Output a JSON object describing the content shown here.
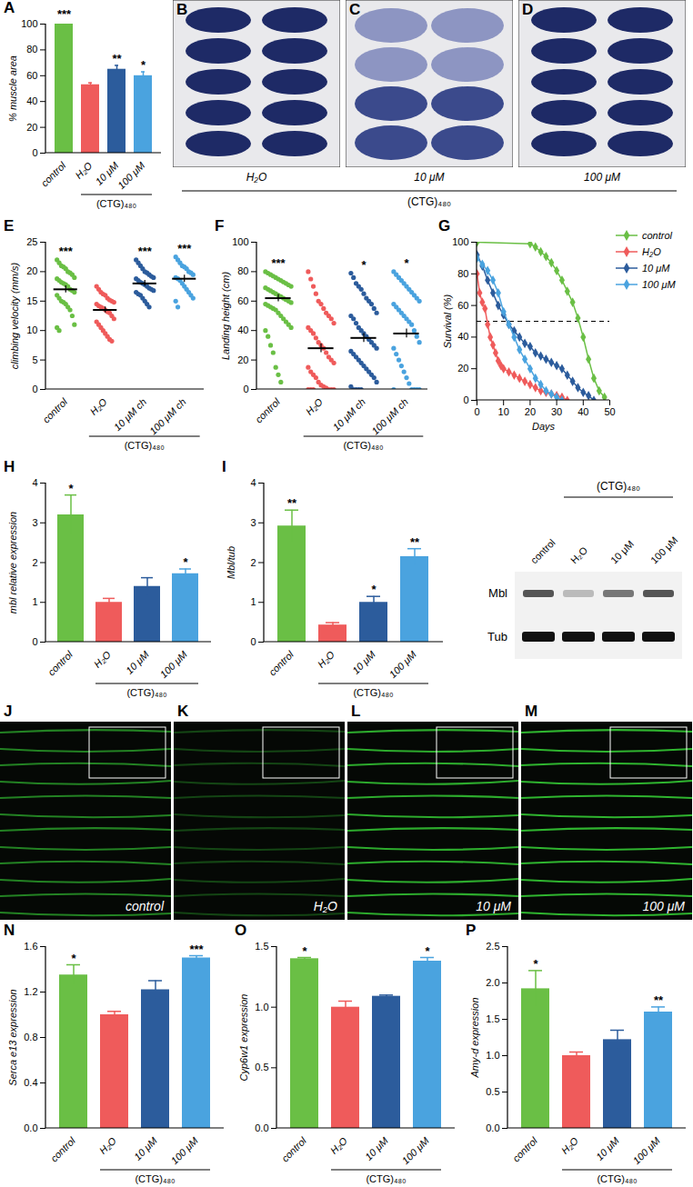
{
  "chart_data": [
    {
      "type": "bar",
      "panel_label": "A",
      "y_label": "% muscle area",
      "categories": [
        "control",
        "H₂O",
        "10 μM",
        "100 μM"
      ],
      "values": [
        100,
        53,
        65,
        60
      ],
      "errors": [
        2.5,
        1.5,
        3,
        3
      ],
      "significance": [
        "***",
        null,
        "**",
        "*"
      ],
      "colors": [
        "#6abf45",
        "#ef5b5b",
        "#2c5c9c",
        "#4aa3df"
      ],
      "group": {
        "label": "(CTG)₄₈₀",
        "categories": [
          "H₂O",
          "10 μM",
          "100 μM"
        ]
      },
      "ylim": [
        0,
        100
      ],
      "yticks": [
        0,
        20,
        40,
        60,
        80,
        100
      ]
    },
    {
      "type": "scatter",
      "panel_label": "E",
      "y_label": "climbing velocity (mm/s)",
      "categories": [
        "control",
        "H₂O",
        "10 μM ch",
        "100 μM ch"
      ],
      "points": [
        [
          22,
          21.5,
          21,
          20.8,
          20.5,
          20,
          19.8,
          19.5,
          19,
          18.8,
          18.5,
          18.2,
          18,
          17.8,
          17.5,
          17,
          16.8,
          16.5,
          16,
          15.5,
          15,
          14.8,
          14.5,
          14,
          13.5,
          12.5,
          11,
          10.5,
          10
        ],
        [
          17.5,
          17,
          16.5,
          16.2,
          16,
          15.5,
          15.2,
          15,
          14.8,
          14.5,
          14.2,
          14,
          13.8,
          13.5,
          13.2,
          13,
          12.5,
          12,
          11.5,
          11,
          10.5,
          10,
          9.5,
          9,
          8.5,
          8.2
        ],
        [
          22,
          21.5,
          21,
          20.5,
          20,
          19.8,
          19.5,
          19.2,
          19,
          18.8,
          18.5,
          18.2,
          18,
          17.8,
          17.5,
          17.2,
          17,
          16.8,
          16.5,
          16.2,
          16,
          15.5,
          15,
          14.5,
          14
        ],
        [
          22.5,
          22,
          21.5,
          21,
          20.8,
          20.5,
          20,
          19.8,
          19.5,
          19,
          18.8,
          18.5,
          18,
          17.5,
          17,
          16.5,
          16,
          15.5,
          15,
          14
        ]
      ],
      "means": [
        17,
        13.5,
        18,
        18.8
      ],
      "errors": [
        0.6,
        0.5,
        0.5,
        0.6
      ],
      "significance": [
        "***",
        null,
        "***",
        "***"
      ],
      "colors": [
        "#6abf45",
        "#ef5b5b",
        "#2c5c9c",
        "#4aa3df"
      ],
      "group": {
        "label": "(CTG)₄₈₀",
        "categories": [
          "H₂O",
          "10 μM ch",
          "100 μM ch"
        ]
      },
      "ylim": [
        0,
        25
      ],
      "yticks": [
        0,
        5,
        10,
        15,
        20,
        25
      ]
    },
    {
      "type": "scatter",
      "panel_label": "F",
      "y_label": "Landing height (cm)",
      "categories": [
        "control",
        "H₂O",
        "10 μM ch",
        "100 μM ch"
      ],
      "points": [
        [
          80,
          79,
          78,
          77,
          76,
          75,
          74,
          73,
          72,
          71,
          70,
          69,
          68,
          67,
          66,
          65,
          64,
          63,
          62,
          61,
          60,
          59,
          58,
          57,
          56,
          55,
          54,
          52,
          50,
          48,
          46,
          44,
          42,
          40,
          36,
          30,
          25,
          15,
          10,
          5
        ],
        [
          80,
          75,
          70,
          65,
          60,
          58,
          55,
          52,
          50,
          48,
          45,
          42,
          40,
          38,
          35,
          32,
          30,
          28,
          25,
          22,
          20,
          18,
          15,
          12,
          10,
          8,
          5,
          3,
          2,
          1,
          0,
          0,
          0,
          0,
          0,
          0
        ],
        [
          79,
          76,
          72,
          70,
          68,
          65,
          62,
          60,
          58,
          55,
          52,
          50,
          48,
          45,
          42,
          40,
          38,
          36,
          34,
          32,
          30,
          28,
          26,
          24,
          22,
          20,
          18,
          16,
          14,
          12,
          10,
          8,
          5,
          2,
          0,
          0,
          0,
          0
        ],
        [
          80,
          78,
          76,
          74,
          72,
          70,
          68,
          66,
          64,
          62,
          60,
          58,
          56,
          54,
          52,
          50,
          48,
          46,
          44,
          40,
          36,
          32,
          28,
          24,
          20,
          16,
          12,
          8,
          4,
          0,
          0,
          0,
          0,
          0
        ]
      ],
      "means": [
        62,
        28,
        35,
        38
      ],
      "errors": [
        2.5,
        3,
        3,
        3
      ],
      "significance": [
        "***",
        null,
        "*",
        "*"
      ],
      "colors": [
        "#6abf45",
        "#ef5b5b",
        "#2c5c9c",
        "#4aa3df"
      ],
      "group": {
        "label": "(CTG)₄₈₀",
        "categories": [
          "H₂O",
          "10 μM ch",
          "100 μM ch"
        ]
      },
      "ylim": [
        0,
        100
      ],
      "yticks": [
        0,
        20,
        40,
        60,
        80,
        100
      ]
    },
    {
      "type": "line",
      "panel_label": "G",
      "x_label": "Days",
      "y_label": "Survival (%)",
      "legend": "top-right",
      "reference_line": 50,
      "series": [
        {
          "name": "control",
          "color": "#6abf45",
          "marker": "diamond",
          "x": [
            0,
            20,
            22,
            24,
            26,
            28,
            30,
            32,
            34,
            36,
            38,
            40,
            42,
            44,
            46,
            48
          ],
          "values": [
            100,
            99,
            97,
            94,
            91,
            87,
            82,
            76,
            69,
            62,
            52,
            40,
            26,
            14,
            6,
            2
          ]
        },
        {
          "name": "H₂O",
          "color": "#ef5b5b",
          "marker": "diamond",
          "x": [
            0,
            1,
            2,
            3,
            4,
            5,
            6,
            7,
            8,
            9,
            10,
            12,
            14,
            16,
            18,
            20,
            22,
            24,
            26,
            28,
            30,
            32,
            34
          ],
          "values": [
            80,
            68,
            62,
            58,
            48,
            40,
            35,
            30,
            25,
            22,
            20,
            18,
            16,
            14,
            12,
            10,
            8,
            6,
            5,
            4,
            3,
            2,
            0
          ]
        },
        {
          "name": "10 μM",
          "color": "#2c5c9c",
          "marker": "diamond",
          "x": [
            0,
            2,
            4,
            6,
            8,
            10,
            12,
            14,
            16,
            18,
            20,
            22,
            24,
            26,
            28,
            30,
            32,
            34,
            36,
            38,
            40,
            42,
            44
          ],
          "values": [
            92,
            85,
            76,
            68,
            60,
            54,
            48,
            44,
            40,
            36,
            34,
            30,
            28,
            26,
            24,
            22,
            20,
            16,
            12,
            8,
            5,
            3,
            0
          ]
        },
        {
          "name": "100 μM",
          "color": "#4aa3df",
          "marker": "diamond",
          "x": [
            0,
            2,
            4,
            6,
            8,
            10,
            12,
            14,
            16,
            18,
            20,
            22,
            24,
            26,
            28,
            30,
            32
          ],
          "values": [
            90,
            86,
            82,
            76,
            68,
            56,
            48,
            40,
            32,
            26,
            20,
            14,
            10,
            6,
            4,
            2,
            0
          ]
        }
      ],
      "xlim": [
        0,
        50
      ],
      "xticks": [
        0,
        10,
        20,
        30,
        40,
        50
      ],
      "ylim": [
        0,
        100
      ],
      "yticks": [
        0,
        20,
        40,
        60,
        80,
        100
      ]
    },
    {
      "type": "bar",
      "panel_label": "H",
      "y_label": "mbl relative expression",
      "categories": [
        "control",
        "H₂O",
        "10 μM",
        "100 μM"
      ],
      "values": [
        3.2,
        1.0,
        1.4,
        1.72
      ],
      "errors": [
        0.5,
        0.1,
        0.22,
        0.12
      ],
      "significance": [
        "*",
        null,
        null,
        "*"
      ],
      "colors": [
        "#6abf45",
        "#ef5b5b",
        "#2c5c9c",
        "#4aa3df"
      ],
      "group": {
        "label": "(CTG)₄₈₀",
        "categories": [
          "H₂O",
          "10 μM",
          "100 μM"
        ]
      },
      "ylim": [
        0,
        4
      ],
      "yticks": [
        0,
        1,
        2,
        3,
        4
      ]
    },
    {
      "type": "bar",
      "panel_label": "I",
      "y_label": "Mbl/tub",
      "categories": [
        "control",
        "H₂O",
        "10 μM",
        "100 μM"
      ],
      "values": [
        2.92,
        0.43,
        1.0,
        2.15
      ],
      "errors": [
        0.4,
        0.06,
        0.15,
        0.2
      ],
      "significance": [
        "**",
        null,
        "*",
        "**"
      ],
      "colors": [
        "#6abf45",
        "#ef5b5b",
        "#2c5c9c",
        "#4aa3df"
      ],
      "group": {
        "label": "(CTG)₄₈₀",
        "categories": [
          "H₂O",
          "10 μM",
          "100 μM"
        ]
      },
      "ylim": [
        0,
        4
      ],
      "yticks": [
        0,
        1,
        2,
        3,
        4
      ]
    },
    {
      "type": "bar",
      "panel_label": "N",
      "y_label": "Serca e13 expression",
      "categories": [
        "control",
        "H₂O",
        "10 μM",
        "100 μM"
      ],
      "values": [
        1.35,
        1.0,
        1.22,
        1.5
      ],
      "errors": [
        0.09,
        0.03,
        0.08,
        0.02
      ],
      "significance": [
        "*",
        null,
        null,
        "***"
      ],
      "colors": [
        "#6abf45",
        "#ef5b5b",
        "#2c5c9c",
        "#4aa3df"
      ],
      "group": {
        "label": "(CTG)₄₈₀",
        "categories": [
          "H₂O",
          "10 μM",
          "100 μM"
        ]
      },
      "ylim": [
        0,
        1.6
      ],
      "yticks": [
        {
          "value": 0,
          "label": "0.0"
        },
        0.4,
        0.8,
        1.2,
        1.6
      ]
    },
    {
      "type": "bar",
      "panel_label": "O",
      "y_label": "Cyp6w1 expression",
      "categories": [
        "control",
        "H₂O",
        "10 μM",
        "100 μM"
      ],
      "values": [
        1.4,
        1.0,
        1.09,
        1.38
      ],
      "errors": [
        0.01,
        0.05,
        0.01,
        0.03
      ],
      "significance": [
        "*",
        null,
        null,
        "*"
      ],
      "colors": [
        "#6abf45",
        "#ef5b5b",
        "#2c5c9c",
        "#4aa3df"
      ],
      "group": {
        "label": "(CTG)₄₈₀",
        "categories": [
          "H₂O",
          "10 μM",
          "100 μM"
        ]
      },
      "ylim": [
        0,
        1.5
      ],
      "yticks": [
        {
          "value": 0,
          "label": "0.0"
        },
        0.5,
        {
          "value": 1,
          "label": "1.0"
        },
        1.5
      ]
    },
    {
      "type": "bar",
      "panel_label": "P",
      "y_label": "Amy-d expression",
      "categories": [
        "control",
        "H₂O",
        "10 μM",
        "100 μM"
      ],
      "values": [
        1.92,
        1.0,
        1.22,
        1.6
      ],
      "errors": [
        0.25,
        0.05,
        0.13,
        0.07
      ],
      "significance": [
        "*",
        null,
        null,
        "**"
      ],
      "colors": [
        "#6abf45",
        "#ef5b5b",
        "#2c5c9c",
        "#4aa3df"
      ],
      "group": {
        "label": "(CTG)₄₈₀",
        "categories": [
          "H₂O",
          "10 μM",
          "100 μM"
        ]
      },
      "ylim": [
        0,
        2.5
      ],
      "yticks": [
        {
          "value": 0,
          "label": "0.0"
        },
        0.5,
        {
          "value": 1,
          "label": "1.0"
        },
        1.5,
        {
          "value": 2,
          "label": "2.0"
        },
        2.5
      ]
    }
  ],
  "histology_panels": {
    "panels": [
      {
        "panel_label": "B",
        "label": "H₂O"
      },
      {
        "panel_label": "C",
        "label": "10 μM"
      },
      {
        "panel_label": "D",
        "label": "100 μM"
      }
    ],
    "group_label": "(CTG)₄₈₀"
  },
  "immunostaining_panels": [
    {
      "panel_label": "J",
      "label": "control"
    },
    {
      "panel_label": "K",
      "label": "H₂O"
    },
    {
      "panel_label": "L",
      "label": "10 μM"
    },
    {
      "panel_label": "M",
      "label": "100 μM"
    }
  ],
  "blot": {
    "lanes": [
      "control",
      "H₂O",
      "10 μM",
      "100 μM"
    ],
    "rows": [
      "Mbl",
      "Tub"
    ],
    "group": {
      "label": "(CTG)₄₈₀",
      "lanes": [
        "H₂O",
        "10 μM",
        "100 μM"
      ]
    }
  }
}
